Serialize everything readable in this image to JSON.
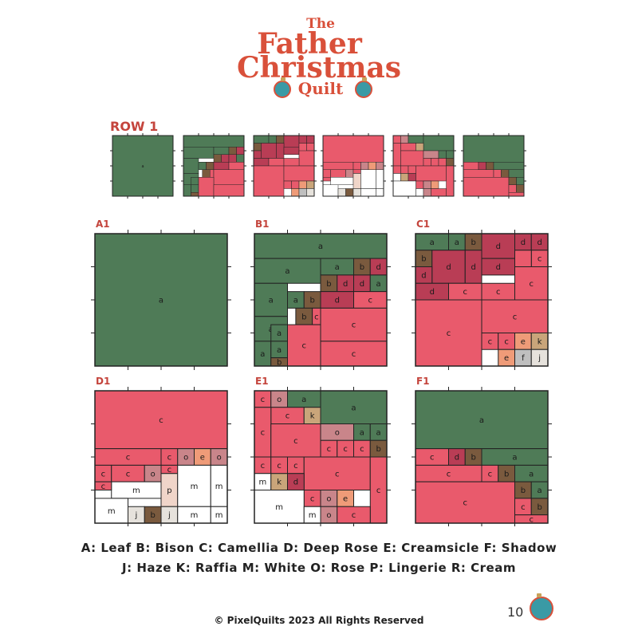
{
  "header": {
    "title_the": "The",
    "title_father": "Father",
    "title_christmas": "Christmas",
    "title_quilt": "Quilt"
  },
  "row_label": "ROW 1",
  "block_labels": [
    "A1",
    "B1",
    "C1",
    "D1",
    "E1",
    "F1"
  ],
  "colors": {
    "a": "#4f7b57",
    "b": "#7a5a3e",
    "c": "#e95a6c",
    "d": "#b93d55",
    "e": "#ef9b78",
    "f": "#bfbfbf",
    "j": "#e6e2dc",
    "k": "#c9a57a",
    "m": "#ffffff",
    "o": "#c9858a",
    "p": "#f0d5c9"
  },
  "legend": {
    "line1": "A: Leaf  B: Bison  C: Camellia  D: Deep Rose  E: Creamsicle  F: Shadow",
    "line2": "J: Haze  K: Raffia  M: White  O: Rose  P: Lingerie  R: Cream"
  },
  "copyright": "PixelQuilts 2023 All Rights Reserved",
  "copyright_symbol": "©",
  "page_number": "10",
  "blocks": {
    "A1": [
      [
        "a",
        0,
        0,
        8,
        8
      ]
    ],
    "B1": [
      [
        "a",
        0,
        0,
        8,
        1.5
      ],
      [
        "a",
        0,
        1.5,
        4,
        1.5
      ],
      [
        "a",
        4,
        1.5,
        2,
        1
      ],
      [
        "b",
        6,
        1.5,
        1,
        1
      ],
      [
        "d",
        7,
        1.5,
        1,
        1
      ],
      [
        "a",
        0,
        3,
        2,
        2
      ],
      [
        "b",
        4,
        2.5,
        1,
        1
      ],
      [
        "d",
        5,
        2.5,
        1,
        1
      ],
      [
        "d",
        6,
        2.5,
        1,
        1
      ],
      [
        "a",
        7,
        2.5,
        1,
        1
      ],
      [
        "a",
        2,
        3.5,
        1,
        1
      ],
      [
        "b",
        3,
        3.5,
        1,
        1
      ],
      [
        "d",
        4,
        3.5,
        2,
        1
      ],
      [
        "c",
        6,
        3.5,
        2,
        1
      ],
      [
        "a",
        0,
        5,
        2,
        1.5
      ],
      [
        "b",
        2.5,
        4.5,
        1,
        1
      ],
      [
        "c",
        3.5,
        4.5,
        0.5,
        1
      ],
      [
        "c",
        4,
        4.5,
        4,
        2
      ],
      [
        "a",
        0,
        6.5,
        1,
        1.5
      ],
      [
        "a",
        1,
        5.5,
        1,
        1
      ],
      [
        "a",
        1,
        6.5,
        1,
        1
      ],
      [
        "b",
        1,
        7.5,
        1,
        0.5
      ],
      [
        "c",
        2,
        5.5,
        2,
        2.5
      ],
      [
        "c",
        4,
        6.5,
        4,
        1.5
      ]
    ],
    "C1": [
      [
        "a",
        0,
        0,
        2,
        1
      ],
      [
        "a",
        2,
        0,
        1,
        1
      ],
      [
        "b",
        3,
        0,
        1,
        1
      ],
      [
        "d",
        4,
        0,
        2,
        1.5
      ],
      [
        "d",
        6,
        0,
        1,
        1
      ],
      [
        "d",
        7,
        0,
        1,
        1
      ],
      [
        "b",
        0,
        1,
        1,
        1
      ],
      [
        "d",
        1,
        1,
        2,
        2
      ],
      [
        "d",
        3,
        1,
        1,
        2
      ],
      [
        "c",
        7,
        1,
        1,
        1
      ],
      [
        "d",
        4,
        1.5,
        2,
        1
      ],
      [
        "c",
        6,
        1,
        1,
        3
      ],
      [
        "d",
        0,
        2,
        1,
        1
      ],
      [
        "c",
        6,
        2,
        2,
        2
      ],
      [
        "d",
        0,
        3,
        2,
        1
      ],
      [
        "c",
        2,
        3,
        2,
        1
      ],
      [
        "c",
        4,
        3,
        2,
        1
      ],
      [
        "c",
        0,
        4,
        4,
        4
      ],
      [
        "c",
        4,
        4,
        4,
        2
      ],
      [
        "c",
        4,
        6,
        1,
        1
      ],
      [
        "c",
        5,
        6,
        1,
        1
      ],
      [
        "e",
        6,
        6,
        1,
        1
      ],
      [
        "k",
        7,
        6,
        1,
        1
      ],
      [
        "e",
        5,
        7,
        1,
        1
      ],
      [
        "f",
        6,
        7,
        1,
        1
      ],
      [
        "j",
        7,
        7,
        1,
        1
      ]
    ],
    "D1": [
      [
        "c",
        0,
        0,
        8,
        3.5
      ],
      [
        "c",
        0,
        3.5,
        4,
        1
      ],
      [
        "c",
        4,
        3.5,
        1,
        1
      ],
      [
        "o",
        5,
        3.5,
        1,
        1
      ],
      [
        "e",
        6,
        3.5,
        1,
        1
      ],
      [
        "o",
        7,
        3.5,
        1,
        1
      ],
      [
        "c",
        0,
        4.5,
        1,
        1
      ],
      [
        "c",
        1,
        4.5,
        2,
        1
      ],
      [
        "o",
        3,
        4.5,
        1,
        1
      ],
      [
        "c",
        4,
        4.5,
        1,
        0.5
      ],
      [
        "m",
        1,
        5.5,
        3,
        1
      ],
      [
        "c",
        0,
        5.5,
        1,
        0.5
      ],
      [
        "p",
        4,
        5,
        1,
        2
      ],
      [
        "m",
        5,
        4.5,
        2,
        2.5
      ],
      [
        "m",
        7,
        4.5,
        1,
        2.5
      ],
      [
        "m",
        0,
        6.5,
        2,
        1.5
      ],
      [
        "j",
        2,
        7,
        1,
        1
      ],
      [
        "b",
        3,
        7,
        1,
        1
      ],
      [
        "j",
        4,
        7,
        1,
        1
      ],
      [
        "m",
        5,
        7,
        2,
        1
      ],
      [
        "m",
        7,
        7,
        1,
        1
      ]
    ],
    "E1": [
      [
        "c",
        0,
        0,
        1,
        1
      ],
      [
        "o",
        1,
        0,
        1,
        1
      ],
      [
        "a",
        2,
        0,
        2,
        1
      ],
      [
        "a",
        4,
        0,
        4,
        2
      ],
      [
        "c",
        1,
        1,
        2,
        1
      ],
      [
        "k",
        3,
        1,
        1,
        1
      ],
      [
        "c",
        0,
        1,
        1,
        3
      ],
      [
        "c",
        1,
        2,
        3,
        2
      ],
      [
        "o",
        4,
        2,
        2,
        1
      ],
      [
        "a",
        6,
        2,
        1,
        1
      ],
      [
        "a",
        7,
        2,
        1,
        1
      ],
      [
        "c",
        4,
        3,
        1,
        1
      ],
      [
        "c",
        5,
        3,
        1,
        1
      ],
      [
        "c",
        6,
        3,
        1,
        1
      ],
      [
        "b",
        7,
        3,
        1,
        1
      ],
      [
        "c",
        0,
        4,
        1,
        1
      ],
      [
        "c",
        1,
        4,
        1,
        1
      ],
      [
        "c",
        2,
        4,
        1,
        1
      ],
      [
        "c",
        3,
        4,
        4,
        2
      ],
      [
        "c",
        7,
        4,
        1,
        4
      ],
      [
        "m",
        0,
        5,
        1,
        1
      ],
      [
        "k",
        1,
        5,
        1,
        1
      ],
      [
        "d",
        2,
        5,
        1,
        1
      ],
      [
        "c",
        3,
        6,
        1,
        1
      ],
      [
        "m",
        0,
        6,
        3,
        2
      ],
      [
        "c",
        4,
        6,
        1,
        1
      ],
      [
        "o",
        4,
        6,
        1,
        1
      ],
      [
        "e",
        5,
        6,
        1,
        1
      ],
      [
        "m",
        3,
        7,
        1,
        1
      ],
      [
        "o",
        4,
        7,
        1,
        1
      ],
      [
        "c",
        5,
        7,
        2,
        1
      ]
    ],
    "F1": [
      [
        "a",
        0,
        0,
        8,
        3.5
      ],
      [
        "c",
        0,
        3.5,
        2,
        1
      ],
      [
        "d",
        2,
        3.5,
        1,
        1
      ],
      [
        "b",
        3,
        3.5,
        1,
        1
      ],
      [
        "a",
        4,
        3.5,
        4,
        1
      ],
      [
        "c",
        0,
        4.5,
        4,
        1
      ],
      [
        "c",
        4,
        4.5,
        1,
        1
      ],
      [
        "b",
        5,
        4.5,
        1,
        1
      ],
      [
        "a",
        6,
        4.5,
        2,
        1
      ],
      [
        "c",
        0,
        5.5,
        6,
        2.5
      ],
      [
        "b",
        6,
        5.5,
        1,
        1
      ],
      [
        "a",
        7,
        5.5,
        1,
        1
      ],
      [
        "c",
        6,
        6.5,
        1,
        1
      ],
      [
        "b",
        7,
        6.5,
        1,
        1
      ],
      [
        "c",
        6,
        7.5,
        2,
        0.5
      ]
    ]
  }
}
